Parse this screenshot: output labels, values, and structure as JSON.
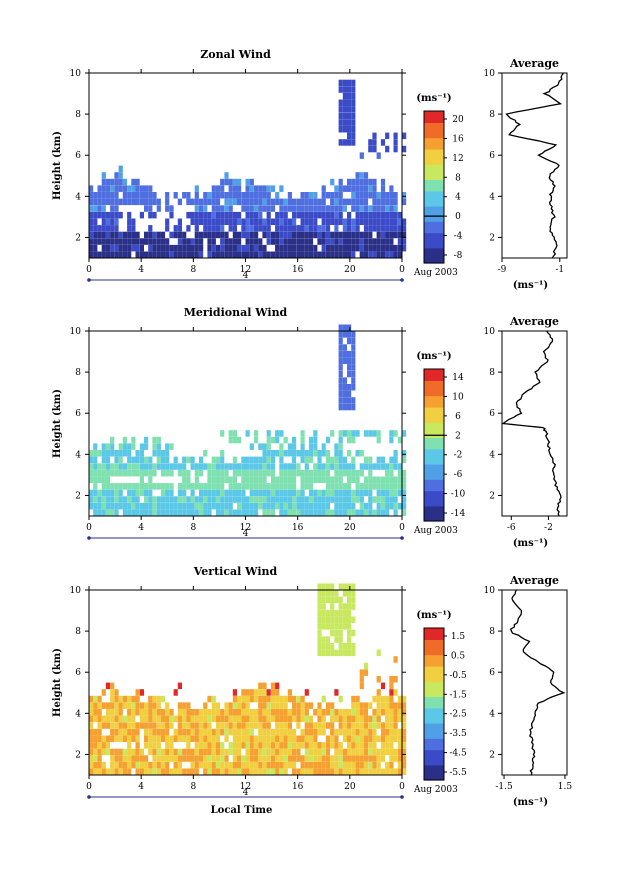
{
  "chart_data": [
    {
      "type": "heatmap",
      "key": "zonal",
      "title": "Zonal Wind",
      "ylabel": "Height (km)",
      "xlabel": "",
      "x_ticks": [
        "0",
        "4",
        "8",
        "12",
        "16",
        "20",
        "0"
      ],
      "y_ticks": [
        "2",
        "4",
        "6",
        "8",
        "10"
      ],
      "xlim": [
        0,
        24
      ],
      "ylim": [
        1,
        10
      ],
      "date_axis": {
        "day": "4",
        "label": "Aug 2003"
      },
      "colorbar": {
        "unit": "(ms⁻¹)",
        "ticks": [
          "20",
          "16",
          "12",
          "8",
          "4",
          "0",
          "-4",
          "-8"
        ],
        "zero_value": 0
      },
      "average_profile": {
        "title": "Average",
        "x_ticks": [
          "-9",
          "-1"
        ],
        "xlim": [
          -9,
          0
        ],
        "unit": "(ms⁻¹)",
        "heights": [
          1.0,
          1.5,
          2.0,
          2.5,
          3.0,
          3.5,
          4.0,
          4.5,
          5.0,
          5.5,
          6.0,
          6.5,
          7.0,
          7.5,
          8.0,
          8.5,
          9.0,
          9.5,
          10.0
        ],
        "values": [
          -2.0,
          -1.5,
          -1.8,
          -2.5,
          -1.8,
          -2.2,
          -2.3,
          -1.8,
          -2.5,
          -1.0,
          -4.0,
          -1.5,
          -8.0,
          -6.5,
          -8.5,
          -1.0,
          -3.0,
          -1.0,
          -0.5
        ]
      }
    },
    {
      "type": "heatmap",
      "key": "meridional",
      "title": "Meridional Wind",
      "ylabel": "Height (km)",
      "xlabel": "",
      "x_ticks": [
        "0",
        "4",
        "8",
        "12",
        "16",
        "20",
        "0"
      ],
      "y_ticks": [
        "2",
        "4",
        "6",
        "8",
        "10"
      ],
      "xlim": [
        0,
        24
      ],
      "ylim": [
        1,
        10
      ],
      "date_axis": {
        "day": "4",
        "label": "Aug 2003"
      },
      "colorbar": {
        "unit": "(ms⁻¹)",
        "ticks": [
          "14",
          "10",
          "6",
          "2",
          "-2",
          "-6",
          "-10",
          "-14"
        ],
        "zero_value": 0
      },
      "average_profile": {
        "title": "Average",
        "x_ticks": [
          "-6",
          "-2"
        ],
        "xlim": [
          -7,
          0
        ],
        "unit": "(ms⁻¹)",
        "heights": [
          1.0,
          1.5,
          2.0,
          2.5,
          3.0,
          3.5,
          4.0,
          4.5,
          5.0,
          5.3,
          5.5,
          6.0,
          6.5,
          7.0,
          7.5,
          8.0,
          8.5,
          9.0,
          9.5,
          10.0
        ],
        "values": [
          -0.8,
          -1.0,
          -0.6,
          -1.2,
          -1.5,
          -1.3,
          -1.8,
          -2.0,
          -2.2,
          -2.5,
          -7.0,
          -5.0,
          -5.5,
          -4.5,
          -3.0,
          -3.5,
          -2.0,
          -2.5,
          -1.5,
          -2.2
        ]
      }
    },
    {
      "type": "heatmap",
      "key": "vertical",
      "title": "Vertical Wind",
      "ylabel": "Height (km)",
      "xlabel": "Local Time",
      "x_ticks": [
        "0",
        "4",
        "8",
        "12",
        "16",
        "20",
        "0"
      ],
      "y_ticks": [
        "2",
        "4",
        "6",
        "8",
        "10"
      ],
      "xlim": [
        0,
        24
      ],
      "ylim": [
        1,
        10
      ],
      "date_axis": {
        "day": "4",
        "label": "Aug 2003"
      },
      "colorbar": {
        "unit": "(ms⁻¹)",
        "ticks": [
          "1.5",
          "0.5",
          "-0.5",
          "-1.5",
          "-2.5",
          "-3.5",
          "-4.5",
          "-5.5"
        ],
        "zero_value": null
      },
      "average_profile": {
        "title": "Average",
        "x_ticks": [
          "-1.5",
          "1.5"
        ],
        "xlim": [
          -1.6,
          1.6
        ],
        "unit": "(ms⁻¹)",
        "heights": [
          1.0,
          1.5,
          2.0,
          2.5,
          3.0,
          3.5,
          4.0,
          4.5,
          5.0,
          5.5,
          6.0,
          6.5,
          7.0,
          7.5,
          8.0,
          8.5,
          9.0,
          9.5,
          10.0
        ],
        "values": [
          -0.2,
          -0.1,
          0.0,
          -0.1,
          -0.2,
          -0.1,
          0.0,
          0.2,
          1.4,
          0.8,
          1.0,
          0.2,
          -0.6,
          -0.3,
          -1.2,
          -0.8,
          -0.6,
          -1.1,
          -0.9
        ]
      }
    }
  ]
}
